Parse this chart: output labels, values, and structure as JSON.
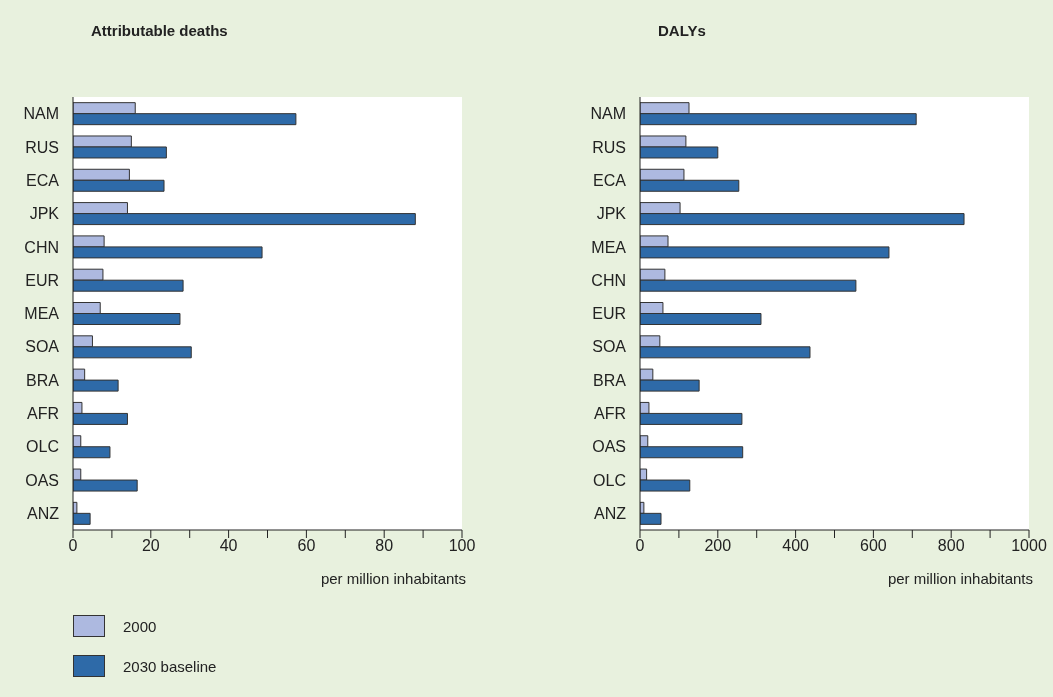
{
  "chart_data": [
    {
      "type": "bar",
      "orientation": "horizontal",
      "title": "Attributable deaths",
      "xlabel": "per million inhabitants",
      "categories": [
        "NAM",
        "RUS",
        "ECA",
        "JPK",
        "CHN",
        "EUR",
        "MEA",
        "SOA",
        "BRA",
        "AFR",
        "OLC",
        "OAS",
        "ANZ"
      ],
      "series": [
        {
          "name": "2000",
          "color": "#adb9e0",
          "values": [
            16,
            15,
            14.5,
            14,
            8,
            7.7,
            7,
            5,
            3,
            2.3,
            2,
            2,
            1
          ]
        },
        {
          "name": "2030 baseline",
          "color": "#2e6aa8",
          "values": [
            57.3,
            24,
            23.4,
            88,
            48.6,
            28.3,
            27.5,
            30.4,
            11.6,
            14,
            9.5,
            16.5,
            4.4
          ]
        }
      ],
      "xlim": [
        0,
        100
      ],
      "xticks": [
        0,
        {
          "value": 10,
          "label": null
        },
        20,
        {
          "value": 30,
          "label": null
        },
        40,
        {
          "value": 50,
          "label": null
        },
        60,
        {
          "value": 70,
          "label": null
        },
        80,
        {
          "value": 90,
          "label": null
        },
        100
      ],
      "grid": false,
      "legend": "bottom left"
    },
    {
      "type": "bar",
      "orientation": "horizontal",
      "title": "DALYs",
      "xlabel": "per million inhabitants",
      "categories": [
        "NAM",
        "RUS",
        "ECA",
        "JPK",
        "MEA",
        "CHN",
        "EUR",
        "SOA",
        "BRA",
        "AFR",
        "OAS",
        "OLC",
        "ANZ"
      ],
      "series": [
        {
          "color": "#adb9e0",
          "values": [
            126,
            118,
            113,
            103,
            72,
            64,
            59,
            51,
            33,
            23,
            20,
            17,
            10
          ]
        },
        {
          "color": "#2e6aa8",
          "values": [
            710,
            200,
            254,
            833,
            640,
            555,
            311,
            437,
            152,
            262,
            264,
            128,
            54
          ]
        }
      ],
      "xlim": [
        0,
        1000
      ],
      "xticks": [
        0,
        {
          "value": 100,
          "label": null
        },
        200,
        {
          "value": 300,
          "label": null
        },
        400,
        {
          "value": 500,
          "label": null
        },
        600,
        {
          "value": 700,
          "label": null
        },
        800,
        {
          "value": 900,
          "label": null
        },
        1000
      ],
      "grid": false
    }
  ]
}
